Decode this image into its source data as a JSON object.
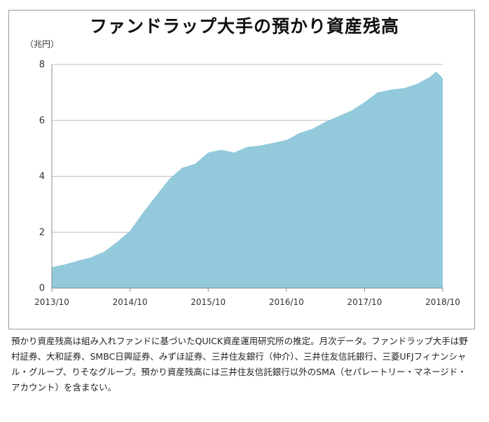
{
  "chart_data": {
    "type": "area",
    "title": "ファンドラップ大手の預かり資産残高",
    "unit_label": "（兆円）",
    "x_ticks": [
      "2013/10",
      "2014/10",
      "2015/10",
      "2016/10",
      "2017/10",
      "2018/10"
    ],
    "y_ticks": [
      "0",
      "2",
      "4",
      "6",
      "8"
    ],
    "ylim": [
      0,
      8
    ],
    "xlim": [
      "2013/10",
      "2018/10"
    ],
    "grid": "horizontal",
    "fill_color": "#92c9db",
    "series": [
      {
        "x": [
          "2013/10",
          "2013/12",
          "2014/02",
          "2014/04",
          "2014/06",
          "2014/08",
          "2014/10",
          "2014/12",
          "2015/02",
          "2015/04",
          "2015/06",
          "2015/08",
          "2015/10",
          "2015/12",
          "2016/02",
          "2016/04",
          "2016/06",
          "2016/08",
          "2016/10",
          "2016/12",
          "2017/02",
          "2017/04",
          "2017/06",
          "2017/08",
          "2017/10",
          "2017/12",
          "2018/02",
          "2018/04",
          "2018/06",
          "2018/08",
          "2018/09",
          "2018/10"
        ],
        "values": [
          0.75,
          0.85,
          0.98,
          1.1,
          1.3,
          1.65,
          2.05,
          2.7,
          3.3,
          3.9,
          4.3,
          4.45,
          4.85,
          4.95,
          4.85,
          5.05,
          5.1,
          5.2,
          5.3,
          5.55,
          5.7,
          5.95,
          6.15,
          6.35,
          6.65,
          7.0,
          7.1,
          7.15,
          7.3,
          7.55,
          7.75,
          7.5
        ]
      }
    ]
  },
  "note": "預かり資産残高は組み入れファンドに基づいたQUICK資産運用研究所の推定。月次データ。ファンドラップ大手は野村証券、大和証券、SMBC日興証券、みずほ証券、三井住友銀行（仲介）、三井住友信託銀行、三菱UFJフィナンシャル・グループ、りそなグループ。預かり資産残高には三井住友信託銀行以外のSMA（セパレートリー・マネージド・アカウント）を含まない。"
}
